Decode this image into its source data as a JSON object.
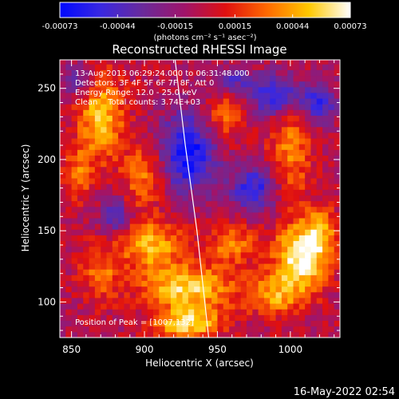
{
  "chart_data": {
    "type": "heatmap",
    "title": "Reconstructed RHESSI Image",
    "xlabel": "Heliocentric X (arcsec)",
    "ylabel": "Heliocentric Y (arcsec)",
    "xlim": [
      842,
      1034
    ],
    "ylim": [
      75,
      270
    ],
    "xticks": [
      "850",
      "900",
      "950",
      "1000"
    ],
    "yticks": [
      "100",
      "150",
      "200",
      "250"
    ],
    "colorbar": {
      "ticks": [
        "-0.00073",
        "-0.00044",
        "-0.00015",
        "0.00015",
        "0.00044",
        "0.00073"
      ],
      "unit_label": "(photons cm⁻² s⁻¹ asec⁻²)",
      "range": [
        -0.00073,
        0.00073
      ],
      "colors": [
        "#0008ff",
        "#3a28e0",
        "#6a2a9a",
        "#a0146a",
        "#e01010",
        "#ff6a00",
        "#ffc800",
        "#ffffff"
      ]
    },
    "annotations": [
      "13-Aug-2013 06:29:24.000 to 06:31:48.000",
      "Detectors: 3F 4F 5F 6F 7F 8F, Att 0",
      "Energy Range: 12.0 - 25.0 keV",
      "Clean    Total counts: 3.74E+03"
    ],
    "peak_label": "Position of Peak = [1007,132]",
    "peak": [
      1007,
      132
    ],
    "limb_curve": {
      "x": [
        921,
        928,
        936,
        944
      ],
      "y": [
        270,
        210,
        150,
        75
      ]
    },
    "timestamp": "16-May-2022 02:54"
  }
}
